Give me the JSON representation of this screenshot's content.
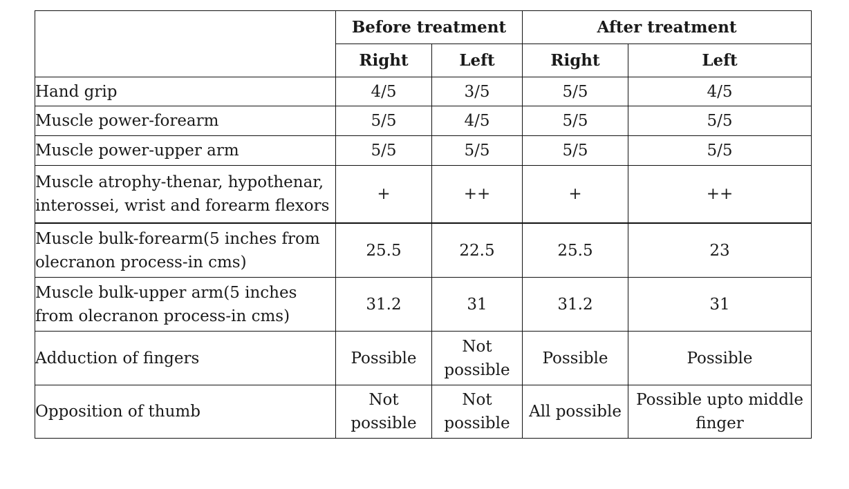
{
  "table": {
    "header": {
      "before_label": "Before treatment",
      "after_label": "After treatment",
      "columns": [
        "Right",
        "Left",
        "Right",
        "Left"
      ]
    },
    "rows": [
      {
        "parameter": "Hand grip",
        "before_right": "4/5",
        "before_left": "3/5",
        "after_right": "5/5",
        "after_left": "4/5"
      },
      {
        "parameter": "Muscle power-forearm",
        "before_right": "5/5",
        "before_left": "4/5",
        "after_right": "5/5",
        "after_left": "5/5"
      },
      {
        "parameter": "Muscle power-upper arm",
        "before_right": "5/5",
        "before_left": "5/5",
        "after_right": "5/5",
        "after_left": "5/5"
      },
      {
        "parameter": "Muscle atrophy-thenar, hypothenar, interossei, wrist and forearm flexors",
        "before_right": "+",
        "before_left": "++",
        "after_right": "+",
        "after_left": "++"
      },
      {
        "parameter": "Muscle bulk-forearm(5 inches from olecranon process-in cms)",
        "before_right": "25.5",
        "before_left": "22.5",
        "after_right": "25.5",
        "after_left": "23"
      },
      {
        "parameter": "Muscle bulk-upper arm(5 inches from olecranon process-in cms)",
        "before_right": "31.2",
        "before_left": "31",
        "after_right": "31.2",
        "after_left": "31"
      },
      {
        "parameter": "Adduction of fingers",
        "before_right": "Possible",
        "before_left": "Not possible",
        "after_right": "Possible",
        "after_left": "Possible"
      },
      {
        "parameter": "Opposition of thumb",
        "before_right": "Not possible",
        "before_left": "Not possible",
        "after_right": "All possible",
        "after_left": "Possible upto middle finger"
      }
    ]
  }
}
